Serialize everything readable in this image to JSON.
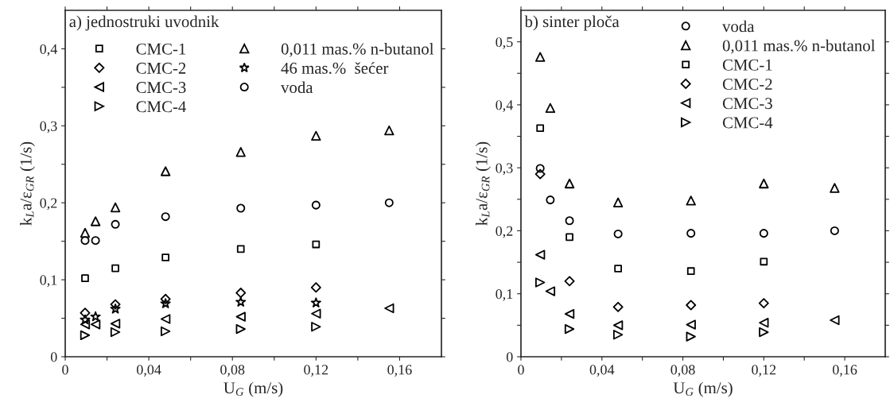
{
  "chart_data": [
    {
      "type": "scatter",
      "annotations": [
        "a) jednostruki uvodnik"
      ],
      "xlabel": "U$_{G}$ (m/s)",
      "ylabel": "k$_{L}$a/ε$_{GR}$ (1/s)",
      "xlim": [
        0,
        0.18
      ],
      "xticks": [
        0,
        {
          "value": 0.02,
          "label": null
        },
        {
          "value": 0.04,
          "label": "0,04"
        },
        {
          "value": 0.06,
          "label": null
        },
        {
          "value": 0.08,
          "label": "0,08"
        },
        {
          "value": 0.1,
          "label": null
        },
        {
          "value": 0.12,
          "label": "0,12"
        },
        {
          "value": 0.14,
          "label": null
        },
        {
          "value": 0.16,
          "label": "0,16"
        }
      ],
      "ylim": [
        0,
        0.45
      ],
      "yticks": [
        0,
        {
          "value": 0.05,
          "label": null
        },
        {
          "value": 0.1,
          "label": "0,1"
        },
        {
          "value": 0.15,
          "label": null
        },
        {
          "value": 0.2,
          "label": "0,2"
        },
        {
          "value": 0.25,
          "label": null
        },
        {
          "value": 0.3,
          "label": "0,3"
        },
        {
          "value": 0.35,
          "label": null
        },
        {
          "value": 0.4,
          "label": "0,4"
        }
      ],
      "grid": false,
      "legend": "top left",
      "series": [
        {
          "name": "CMC-1",
          "color": "#000000",
          "marker": "square",
          "x": [
            0.0095,
            0.024,
            0.048,
            0.084,
            0.12
          ],
          "values": [
            0.102,
            0.115,
            0.129,
            0.14,
            0.146
          ]
        },
        {
          "name": "CMC-2",
          "color": "#000000",
          "marker": "diamond",
          "x": [
            0.0095,
            0.024,
            0.048,
            0.084,
            0.12
          ],
          "values": [
            0.057,
            0.068,
            0.075,
            0.083,
            0.09
          ]
        },
        {
          "name": "CMC-3",
          "color": "#000000",
          "marker": "triangle-left",
          "x": [
            0.0095,
            0.0145,
            0.024,
            0.048,
            0.084,
            0.12,
            0.155
          ],
          "values": [
            0.042,
            0.042,
            0.043,
            0.049,
            0.052,
            0.056,
            0.063
          ]
        },
        {
          "name": "CMC-4",
          "color": "#000000",
          "marker": "triangle-right",
          "x": [
            0.0095,
            0.024,
            0.048,
            0.084,
            0.12
          ],
          "values": [
            0.028,
            0.032,
            0.033,
            0.036,
            0.039
          ]
        },
        {
          "name": "0,011 mas.% n-butanol",
          "color": "#000000",
          "marker": "triangle",
          "x": [
            0.0095,
            0.0145,
            0.024,
            0.048,
            0.084,
            0.12,
            0.155
          ],
          "values": [
            0.161,
            0.176,
            0.194,
            0.241,
            0.266,
            0.287,
            0.294
          ]
        },
        {
          "name": "46 mas.%  šećer",
          "color": "#000000",
          "marker": "star",
          "x": [
            0.0095,
            0.0145,
            0.024,
            0.048,
            0.084,
            0.12
          ],
          "values": [
            0.048,
            0.052,
            0.062,
            0.069,
            0.071,
            0.07
          ]
        },
        {
          "name": "voda",
          "color": "#000000",
          "marker": "circle",
          "x": [
            0.0095,
            0.0145,
            0.024,
            0.048,
            0.084,
            0.12,
            0.155
          ],
          "values": [
            0.151,
            0.151,
            0.172,
            0.182,
            0.193,
            0.197,
            0.2
          ]
        }
      ]
    },
    {
      "type": "scatter",
      "annotations": [
        "b) sinter ploča"
      ],
      "xlabel": "U$_{G}$ (m/s)",
      "ylabel": "k$_{L}$a/ε$_{GR}$ (1/s)",
      "xlim": [
        0,
        0.18
      ],
      "xticks": [
        0,
        {
          "value": 0.02,
          "label": null
        },
        {
          "value": 0.04,
          "label": "0,04"
        },
        {
          "value": 0.06,
          "label": null
        },
        {
          "value": 0.08,
          "label": "0,08"
        },
        {
          "value": 0.1,
          "label": null
        },
        {
          "value": 0.12,
          "label": "0,12"
        },
        {
          "value": 0.14,
          "label": null
        },
        {
          "value": 0.16,
          "label": "0,16"
        }
      ],
      "ylim": [
        0,
        0.55
      ],
      "yticks": [
        0,
        {
          "value": 0.05,
          "label": null
        },
        {
          "value": 0.1,
          "label": "0,1"
        },
        {
          "value": 0.15,
          "label": null
        },
        {
          "value": 0.2,
          "label": "0,2"
        },
        {
          "value": 0.25,
          "label": null
        },
        {
          "value": 0.3,
          "label": "0,3"
        },
        {
          "value": 0.35,
          "label": null
        },
        {
          "value": 0.4,
          "label": "0,4"
        },
        {
          "value": 0.45,
          "label": null
        },
        {
          "value": 0.5,
          "label": "0,5"
        }
      ],
      "grid": false,
      "legend": "top right",
      "series": [
        {
          "name": "voda",
          "color": "#000000",
          "marker": "circle",
          "x": [
            0.0095,
            0.0145,
            0.024,
            0.048,
            0.084,
            0.12,
            0.155
          ],
          "values": [
            0.299,
            0.249,
            0.216,
            0.195,
            0.196,
            0.196,
            0.2
          ]
        },
        {
          "name": "0,011 mas.% n-butanol",
          "color": "#000000",
          "marker": "triangle",
          "x": [
            0.0095,
            0.0145,
            0.024,
            0.048,
            0.084,
            0.12,
            0.155
          ],
          "values": [
            0.476,
            0.395,
            0.275,
            0.245,
            0.248,
            0.275,
            0.268
          ]
        },
        {
          "name": "CMC-1",
          "color": "#000000",
          "marker": "square",
          "x": [
            0.0095,
            0.024,
            0.048,
            0.084,
            0.12
          ],
          "values": [
            0.363,
            0.19,
            0.14,
            0.136,
            0.151
          ]
        },
        {
          "name": "CMC-2",
          "color": "#000000",
          "marker": "diamond",
          "x": [
            0.0095,
            0.024,
            0.048,
            0.084,
            0.12
          ],
          "values": [
            0.29,
            0.12,
            0.079,
            0.082,
            0.085
          ]
        },
        {
          "name": "CMC-3",
          "color": "#000000",
          "marker": "triangle-left",
          "x": [
            0.0095,
            0.0145,
            0.024,
            0.048,
            0.084,
            0.12,
            0.155
          ],
          "values": [
            0.162,
            0.104,
            0.068,
            0.05,
            0.051,
            0.054,
            0.058
          ]
        },
        {
          "name": "CMC-4",
          "color": "#000000",
          "marker": "triangle-right",
          "x": [
            0.0095,
            0.024,
            0.048,
            0.084,
            0.12
          ],
          "values": [
            0.118,
            0.044,
            0.035,
            0.032,
            0.039
          ]
        }
      ]
    }
  ]
}
